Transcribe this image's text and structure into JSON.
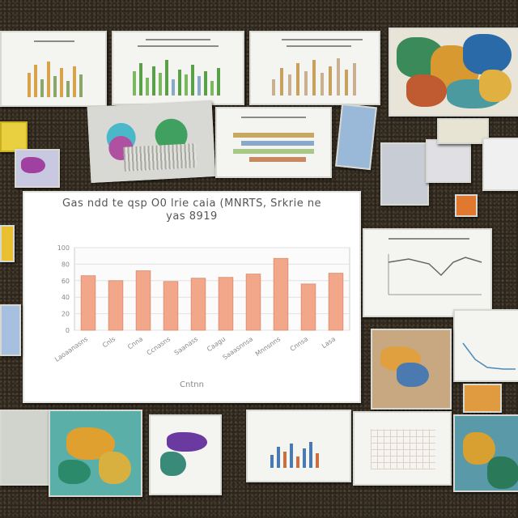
{
  "scene": {
    "background_color": "#2a241c"
  },
  "main_chart_title": "Gas ndd te qsp O0 lrie caia (MNRTS, Srkrie ne yas 8919",
  "chart_data": {
    "type": "bar",
    "title": "Gas ndd te qsp O0 lrie caia (MNRTS, Srkrie ne yas 8919",
    "xlabel": "Cntnn",
    "ylabel": "",
    "categories": [
      "Laoaanasns",
      "Cnls",
      "Cnna",
      "Ccnasns",
      "Saanass",
      "Caagu",
      "Saaasnnsa",
      "Mnnsnns",
      "Cnnsa",
      "Lasa"
    ],
    "values": [
      66,
      60,
      72,
      59,
      63,
      64,
      68,
      87,
      56,
      69
    ],
    "ylim": [
      0,
      100
    ],
    "yticks": [
      "0",
      "20",
      "40",
      "60",
      "80",
      "100"
    ],
    "grid": true,
    "bar_color": "#f2a78a"
  }
}
